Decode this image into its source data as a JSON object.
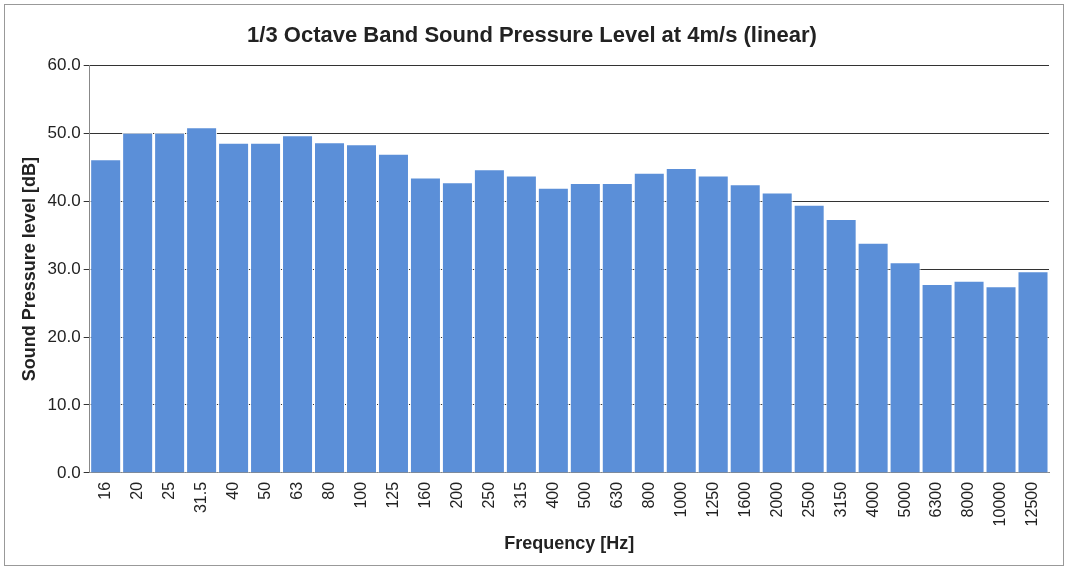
{
  "chart_data": {
    "type": "bar",
    "title": "1/3 Octave Band Sound Pressure Level at 4m/s (linear)",
    "xlabel": "Frequency [Hz]",
    "ylabel": "Sound Pressure level [dB]",
    "categories": [
      "16",
      "20",
      "25",
      "31.5",
      "40",
      "50",
      "63",
      "80",
      "100",
      "125",
      "160",
      "200",
      "250",
      "315",
      "400",
      "500",
      "630",
      "800",
      "1000",
      "1250",
      "1600",
      "2000",
      "2500",
      "3150",
      "4000",
      "5000",
      "6300",
      "8000",
      "10000",
      "12500"
    ],
    "values": [
      46.2,
      50.1,
      50.1,
      50.9,
      48.6,
      48.6,
      49.7,
      48.7,
      48.4,
      47.0,
      43.5,
      42.8,
      44.7,
      43.8,
      42.0,
      42.7,
      42.7,
      44.2,
      44.9,
      43.8,
      42.5,
      41.3,
      39.5,
      37.4,
      33.9,
      31.0,
      27.8,
      28.3,
      27.5,
      29.7
    ],
    "color": "#5b8fd8",
    "ylim": [
      0,
      60
    ],
    "yticks": [
      {
        "value": 0,
        "label": "0.0"
      },
      {
        "value": 10,
        "label": "10.0"
      },
      {
        "value": 20,
        "label": "20.0"
      },
      {
        "value": 30,
        "label": "30.0"
      },
      {
        "value": 40,
        "label": "40.0"
      },
      {
        "value": 50,
        "label": "50.0"
      },
      {
        "value": 60,
        "label": "60.0"
      }
    ],
    "grid": "y"
  }
}
